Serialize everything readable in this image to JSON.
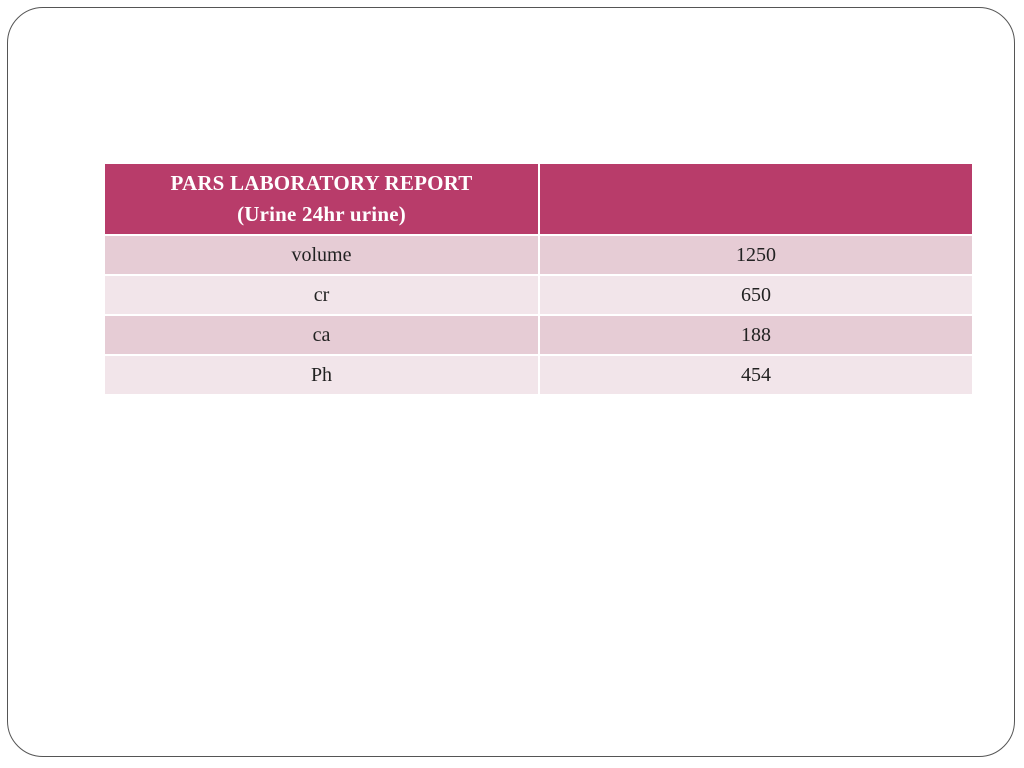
{
  "table": {
    "header": {
      "title_line1": "PARS LABORATORY REPORT",
      "title_line2": "(Urine 24hr urine)",
      "right": ""
    },
    "rows": [
      {
        "label": "volume",
        "value": "1250"
      },
      {
        "label": "cr",
        "value": "650"
      },
      {
        "label": "ca",
        "value": "188"
      },
      {
        "label": "Ph",
        "value": "454"
      }
    ]
  },
  "colors": {
    "header_bg": "#b83c6a",
    "row_dark": "#e6ccd5",
    "row_light": "#f2e5ea"
  }
}
